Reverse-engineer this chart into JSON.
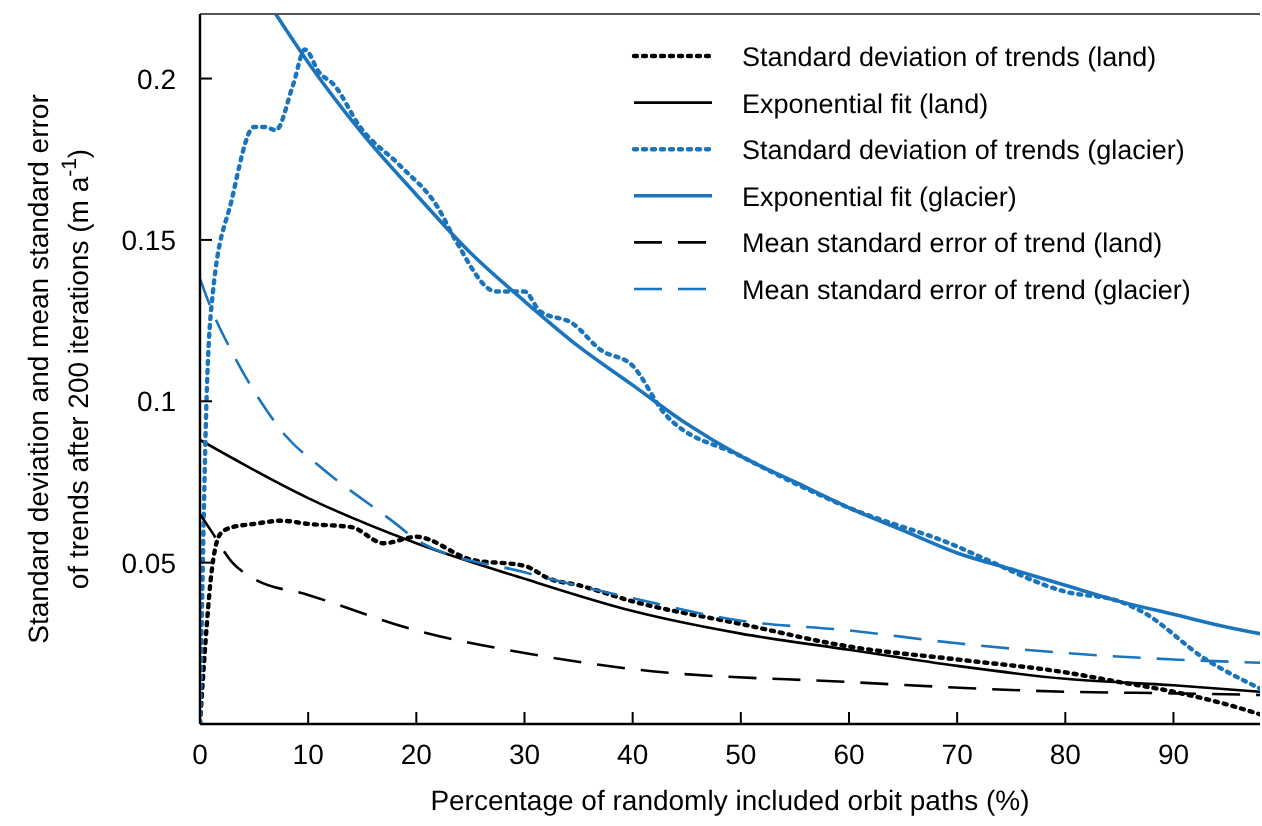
{
  "chart_data": {
    "type": "line",
    "xlabel": "Percentage of randomly included orbit paths (%)",
    "ylabel": "Standard deviation and mean standard error\nof trends after 200 iterations (m a$^{-1}$)",
    "xlim": [
      0,
      98
    ],
    "ylim": [
      0,
      0.22
    ],
    "xticks": [
      0,
      10,
      20,
      30,
      40,
      50,
      60,
      70,
      80,
      90
    ],
    "yticks": [
      0.05,
      0.1,
      0.15,
      0.2
    ],
    "grid": false,
    "legend": "top right",
    "series": [
      {
        "name": "Standard deviation of trends (land)",
        "color": "#000000",
        "line_style": "dotted",
        "x": [
          0,
          0.5,
          1,
          1.9,
          3,
          5,
          7.5,
          10,
          14,
          17,
          20,
          25,
          30,
          32.3,
          35,
          40,
          50,
          60,
          70,
          80,
          85,
          90,
          95,
          98
        ],
        "values": [
          0,
          0.025,
          0.045,
          0.059,
          0.061,
          0.062,
          0.063,
          0.062,
          0.061,
          0.056,
          0.058,
          0.051,
          0.049,
          0.045,
          0.043,
          0.038,
          0.031,
          0.024,
          0.02,
          0.016,
          0.013,
          0.01,
          0.006,
          0.003
        ]
      },
      {
        "name": "Exponential fit (land)",
        "color": "#000000",
        "line_style": "solid",
        "x": [
          0,
          10,
          20,
          30,
          40,
          50,
          60,
          70,
          80,
          90,
          98
        ],
        "values": [
          0.088,
          0.07,
          0.056,
          0.045,
          0.035,
          0.028,
          0.023,
          0.018,
          0.014,
          0.012,
          0.01
        ]
      },
      {
        "name": "Standard deviation of trends (glacier)",
        "color": "#1b75bc",
        "line_style": "dotted",
        "x": [
          0,
          0.6,
          1.2,
          2.9,
          5,
          6,
          7,
          8.6,
          9.7,
          11,
          12.4,
          14.8,
          18.5,
          22,
          23.6,
          27.4,
          30,
          31.4,
          34.5,
          37,
          40,
          43,
          50,
          60,
          70,
          72,
          80,
          85,
          87,
          93,
          98
        ],
        "values": [
          0,
          0.1,
          0.134,
          0.162,
          0.185,
          0.185,
          0.184,
          0.198,
          0.209,
          0.202,
          0.198,
          0.185,
          0.173,
          0.16,
          0.15,
          0.134,
          0.134,
          0.128,
          0.124,
          0.116,
          0.111,
          0.096,
          0.083,
          0.067,
          0.055,
          0.052,
          0.041,
          0.038,
          0.035,
          0.02,
          0.011
        ]
      },
      {
        "name": "Exponential fit (glacier)",
        "color": "#1b75bc",
        "line_style": "solid",
        "x": [
          7,
          10,
          15,
          20,
          25,
          30,
          35,
          40,
          45,
          50,
          55,
          60,
          65,
          70,
          75,
          80,
          85,
          90,
          95,
          98
        ],
        "values": [
          0.22,
          0.205,
          0.183,
          0.164,
          0.146,
          0.131,
          0.117,
          0.105,
          0.093,
          0.083,
          0.075,
          0.067,
          0.06,
          0.053,
          0.048,
          0.043,
          0.038,
          0.034,
          0.03,
          0.028
        ]
      },
      {
        "name": "Mean standard error of trend (land)",
        "color": "#000000",
        "line_style": "dashed",
        "x": [
          0,
          1,
          3,
          5,
          10,
          20,
          30,
          40,
          60,
          80,
          90,
          98
        ],
        "values": [
          0.065,
          0.06,
          0.05,
          0.045,
          0.04,
          0.029,
          0.022,
          0.017,
          0.013,
          0.01,
          0.0095,
          0.009
        ]
      },
      {
        "name": "Mean standard error of trend (glacier)",
        "color": "#1b75bc",
        "line_style": "dashed",
        "x": [
          0,
          1,
          3,
          6.2,
          8,
          11,
          18.5,
          20,
          30,
          40,
          50,
          60,
          70,
          80,
          90,
          98
        ],
        "values": [
          0.138,
          0.129,
          0.115,
          0.097,
          0.089,
          0.08,
          0.061,
          0.057,
          0.047,
          0.039,
          0.032,
          0.029,
          0.025,
          0.022,
          0.02,
          0.019
        ]
      }
    ]
  }
}
